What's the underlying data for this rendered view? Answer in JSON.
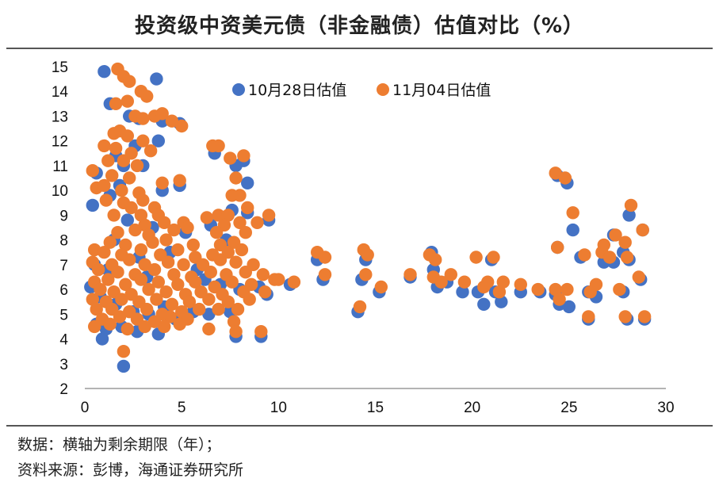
{
  "title": "投资级中资美元债（非金融债）估值对比（%）",
  "notes": {
    "line1": "数据：横轴为剩余期限（年）；",
    "line2": "资料来源：彭博，海通证券研究所"
  },
  "chart_data": {
    "type": "scatter",
    "title": "投资级中资美元债（非金融债）估值对比（%）",
    "xlabel": "",
    "ylabel": "",
    "xlim": [
      0,
      30
    ],
    "ylim": [
      2,
      15
    ],
    "xticks": [
      "0",
      "5",
      "10",
      "15",
      "20",
      "25",
      "30"
    ],
    "yticks": [
      "2",
      "3",
      "4",
      "5",
      "6",
      "7",
      "8",
      "9",
      "10",
      "11",
      "12",
      "13",
      "14",
      "15"
    ],
    "grid": false,
    "legend_position": "top",
    "series": [
      {
        "name": "10月28日估值",
        "color": "#4472C4",
        "points": [
          [
            1.0,
            14.8
          ],
          [
            3.7,
            14.5
          ],
          [
            1.3,
            13.5
          ],
          [
            2.3,
            13.0
          ],
          [
            2.8,
            12.9
          ],
          [
            4.0,
            12.8
          ],
          [
            4.9,
            12.7
          ],
          [
            3.8,
            12.0
          ],
          [
            2.6,
            11.8
          ],
          [
            1.6,
            11.4
          ],
          [
            3.0,
            11.0
          ],
          [
            2.0,
            11.0
          ],
          [
            6.7,
            11.5
          ],
          [
            8.2,
            11.2
          ],
          [
            7.8,
            11.0
          ],
          [
            0.6,
            10.7
          ],
          [
            8.4,
            10.3
          ],
          [
            4.0,
            10.0
          ],
          [
            4.9,
            10.2
          ],
          [
            1.8,
            10.2
          ],
          [
            1.3,
            9.8
          ],
          [
            0.4,
            9.4
          ],
          [
            7.6,
            9.2
          ],
          [
            8.4,
            9.1
          ],
          [
            9.5,
            8.8
          ],
          [
            5.2,
            8.3
          ],
          [
            6.5,
            8.6
          ],
          [
            7.3,
            8.0
          ],
          [
            2.2,
            8.8
          ],
          [
            3.5,
            8.5
          ],
          [
            1.5,
            8.0
          ],
          [
            4.4,
            7.5
          ],
          [
            2.8,
            7.3
          ],
          [
            0.5,
            7.0
          ],
          [
            1.2,
            6.8
          ],
          [
            3.2,
            6.5
          ],
          [
            5.8,
            6.8
          ],
          [
            6.2,
            6.4
          ],
          [
            7.0,
            6.2
          ],
          [
            8.0,
            6.0
          ],
          [
            9.0,
            6.1
          ],
          [
            9.4,
            5.8
          ],
          [
            10.6,
            6.2
          ],
          [
            12.0,
            7.2
          ],
          [
            12.3,
            6.4
          ],
          [
            0.3,
            6.1
          ],
          [
            0.8,
            5.7
          ],
          [
            1.6,
            5.4
          ],
          [
            2.5,
            5.1
          ],
          [
            3.3,
            5.0
          ],
          [
            4.1,
            5.3
          ],
          [
            4.7,
            4.8
          ],
          [
            5.6,
            5.1
          ],
          [
            6.4,
            5.0
          ],
          [
            7.5,
            5.1
          ],
          [
            0.6,
            4.6
          ],
          [
            1.1,
            4.4
          ],
          [
            1.9,
            4.5
          ],
          [
            2.7,
            4.3
          ],
          [
            3.8,
            4.2
          ],
          [
            0.9,
            4.0
          ],
          [
            7.8,
            4.1
          ],
          [
            9.1,
            4.1
          ],
          [
            2.0,
            2.9
          ],
          [
            14.5,
            7.2
          ],
          [
            14.3,
            6.4
          ],
          [
            14.1,
            5.1
          ],
          [
            15.2,
            5.9
          ],
          [
            16.8,
            6.5
          ],
          [
            17.9,
            7.5
          ],
          [
            18.0,
            6.8
          ],
          [
            18.2,
            6.1
          ],
          [
            18.7,
            6.3
          ],
          [
            19.5,
            5.9
          ],
          [
            20.3,
            5.9
          ],
          [
            20.6,
            5.4
          ],
          [
            21.0,
            7.2
          ],
          [
            21.2,
            5.9
          ],
          [
            21.5,
            5.5
          ],
          [
            22.5,
            5.9
          ],
          [
            23.5,
            5.9
          ],
          [
            24.3,
            5.8
          ],
          [
            24.5,
            5.4
          ],
          [
            25.0,
            5.3
          ],
          [
            24.4,
            7.7
          ],
          [
            24.9,
            10.3
          ],
          [
            24.4,
            10.6
          ],
          [
            25.2,
            8.4
          ],
          [
            25.6,
            7.3
          ],
          [
            26.0,
            5.9
          ],
          [
            26.4,
            5.7
          ],
          [
            26.0,
            4.8
          ],
          [
            26.8,
            7.1
          ],
          [
            27.3,
            8.2
          ],
          [
            27.3,
            7.1
          ],
          [
            27.8,
            7.5
          ],
          [
            28.1,
            7.2
          ],
          [
            27.8,
            5.9
          ],
          [
            28.1,
            9.0
          ],
          [
            28.7,
            6.4
          ],
          [
            28.8,
            8.4
          ],
          [
            28.0,
            4.8
          ],
          [
            28.9,
            4.8
          ]
        ]
      },
      {
        "name": "11月04日估值",
        "color": "#ED7D31",
        "points": [
          [
            1.7,
            14.9
          ],
          [
            2.0,
            14.6
          ],
          [
            2.3,
            14.4
          ],
          [
            2.9,
            14.0
          ],
          [
            3.2,
            13.8
          ],
          [
            1.6,
            13.5
          ],
          [
            2.2,
            13.6
          ],
          [
            2.6,
            13.0
          ],
          [
            3.6,
            13.0
          ],
          [
            4.0,
            13.1
          ],
          [
            3.0,
            12.9
          ],
          [
            4.5,
            12.8
          ],
          [
            5.0,
            12.6
          ],
          [
            1.5,
            12.3
          ],
          [
            1.8,
            12.4
          ],
          [
            2.2,
            12.2
          ],
          [
            3.0,
            12.0
          ],
          [
            1.0,
            11.8
          ],
          [
            1.6,
            11.7
          ],
          [
            2.4,
            11.5
          ],
          [
            3.4,
            11.6
          ],
          [
            1.2,
            11.2
          ],
          [
            2.0,
            11.2
          ],
          [
            2.7,
            11.0
          ],
          [
            6.6,
            11.8
          ],
          [
            6.9,
            11.8
          ],
          [
            7.5,
            11.3
          ],
          [
            8.2,
            11.4
          ],
          [
            0.4,
            10.8
          ],
          [
            1.4,
            10.6
          ],
          [
            2.3,
            10.5
          ],
          [
            4.0,
            10.3
          ],
          [
            4.9,
            10.4
          ],
          [
            7.8,
            10.5
          ],
          [
            0.6,
            10.1
          ],
          [
            1.0,
            10.2
          ],
          [
            1.9,
            10.0
          ],
          [
            2.8,
            9.9
          ],
          [
            7.6,
            9.8
          ],
          [
            8.0,
            9.8
          ],
          [
            1.1,
            9.6
          ],
          [
            2.0,
            9.5
          ],
          [
            3.0,
            9.6
          ],
          [
            3.6,
            9.3
          ],
          [
            2.4,
            9.3
          ],
          [
            1.5,
            9.0
          ],
          [
            2.9,
            9.0
          ],
          [
            3.8,
            9.0
          ],
          [
            6.9,
            9.0
          ],
          [
            7.4,
            9.0
          ],
          [
            8.4,
            9.3
          ],
          [
            9.5,
            9.0
          ],
          [
            3.1,
            8.6
          ],
          [
            4.1,
            8.7
          ],
          [
            5.1,
            8.7
          ],
          [
            6.3,
            8.9
          ],
          [
            7.2,
            8.6
          ],
          [
            8.0,
            8.7
          ],
          [
            8.9,
            8.7
          ],
          [
            1.7,
            8.3
          ],
          [
            2.6,
            8.4
          ],
          [
            3.3,
            8.2
          ],
          [
            4.6,
            8.4
          ],
          [
            5.3,
            8.5
          ],
          [
            6.8,
            8.3
          ],
          [
            8.3,
            8.3
          ],
          [
            1.3,
            7.9
          ],
          [
            2.1,
            7.8
          ],
          [
            3.5,
            7.9
          ],
          [
            4.2,
            8.0
          ],
          [
            5.6,
            7.8
          ],
          [
            7.0,
            7.8
          ],
          [
            7.7,
            7.9
          ],
          [
            0.5,
            7.6
          ],
          [
            1.0,
            7.5
          ],
          [
            1.9,
            7.4
          ],
          [
            2.9,
            7.6
          ],
          [
            3.9,
            7.4
          ],
          [
            4.8,
            7.6
          ],
          [
            5.7,
            7.3
          ],
          [
            6.6,
            7.4
          ],
          [
            7.4,
            7.5
          ],
          [
            8.1,
            7.6
          ],
          [
            0.4,
            7.1
          ],
          [
            1.4,
            7.0
          ],
          [
            2.3,
            7.2
          ],
          [
            3.1,
            7.0
          ],
          [
            4.3,
            7.1
          ],
          [
            5.1,
            7.0
          ],
          [
            6.1,
            7.0
          ],
          [
            7.0,
            7.2
          ],
          [
            7.8,
            7.1
          ],
          [
            8.7,
            7.0
          ],
          [
            0.7,
            6.8
          ],
          [
            1.7,
            6.7
          ],
          [
            2.6,
            6.6
          ],
          [
            3.6,
            6.8
          ],
          [
            4.6,
            6.6
          ],
          [
            5.5,
            6.5
          ],
          [
            6.5,
            6.7
          ],
          [
            7.3,
            6.6
          ],
          [
            8.3,
            6.7
          ],
          [
            9.2,
            6.6
          ],
          [
            0.5,
            6.3
          ],
          [
            1.2,
            6.4
          ],
          [
            2.1,
            6.2
          ],
          [
            2.9,
            6.4
          ],
          [
            3.8,
            6.3
          ],
          [
            4.8,
            6.2
          ],
          [
            5.7,
            6.3
          ],
          [
            6.7,
            6.1
          ],
          [
            7.6,
            6.3
          ],
          [
            8.6,
            6.2
          ],
          [
            9.8,
            6.4
          ],
          [
            0.8,
            6.0
          ],
          [
            1.5,
            5.9
          ],
          [
            2.4,
            5.8
          ],
          [
            3.3,
            6.0
          ],
          [
            4.2,
            5.9
          ],
          [
            5.2,
            5.8
          ],
          [
            6.0,
            5.9
          ],
          [
            7.1,
            5.8
          ],
          [
            8.2,
            5.9
          ],
          [
            9.3,
            5.9
          ],
          [
            0.4,
            5.6
          ],
          [
            1.1,
            5.5
          ],
          [
            1.9,
            5.6
          ],
          [
            2.8,
            5.5
          ],
          [
            3.7,
            5.6
          ],
          [
            4.5,
            5.4
          ],
          [
            5.4,
            5.5
          ],
          [
            6.4,
            5.6
          ],
          [
            7.4,
            5.5
          ],
          [
            8.5,
            5.6
          ],
          [
            0.6,
            5.2
          ],
          [
            1.4,
            5.2
          ],
          [
            2.3,
            5.1
          ],
          [
            3.2,
            5.2
          ],
          [
            4.0,
            5.0
          ],
          [
            5.0,
            5.1
          ],
          [
            5.9,
            5.2
          ],
          [
            6.9,
            5.2
          ],
          [
            7.9,
            5.2
          ],
          [
            0.9,
            4.8
          ],
          [
            1.8,
            4.9
          ],
          [
            2.7,
            4.8
          ],
          [
            3.6,
            4.7
          ],
          [
            4.4,
            4.9
          ],
          [
            5.3,
            4.8
          ],
          [
            0.5,
            4.5
          ],
          [
            1.3,
            4.6
          ],
          [
            2.2,
            4.4
          ],
          [
            3.1,
            4.5
          ],
          [
            4.1,
            4.5
          ],
          [
            4.9,
            4.6
          ],
          [
            7.7,
            4.7
          ],
          [
            6.4,
            4.4
          ],
          [
            7.8,
            4.3
          ],
          [
            9.1,
            4.3
          ],
          [
            2.0,
            3.5
          ],
          [
            10.0,
            6.4
          ],
          [
            10.8,
            6.3
          ],
          [
            12.0,
            7.5
          ],
          [
            12.4,
            7.3
          ],
          [
            12.4,
            6.6
          ],
          [
            14.4,
            7.6
          ],
          [
            14.6,
            7.4
          ],
          [
            14.5,
            6.6
          ],
          [
            14.2,
            5.3
          ],
          [
            15.3,
            6.1
          ],
          [
            16.8,
            6.6
          ],
          [
            17.8,
            7.4
          ],
          [
            18.1,
            7.2
          ],
          [
            18.0,
            6.5
          ],
          [
            18.4,
            6.3
          ],
          [
            18.9,
            6.6
          ],
          [
            19.6,
            6.3
          ],
          [
            20.2,
            7.3
          ],
          [
            20.6,
            6.1
          ],
          [
            20.8,
            6.3
          ],
          [
            21.1,
            7.3
          ],
          [
            21.4,
            5.9
          ],
          [
            21.6,
            6.3
          ],
          [
            22.5,
            6.2
          ],
          [
            23.4,
            6.0
          ],
          [
            24.3,
            6.0
          ],
          [
            24.5,
            5.6
          ],
          [
            24.9,
            6.0
          ],
          [
            24.4,
            7.7
          ],
          [
            24.3,
            10.7
          ],
          [
            24.8,
            10.5
          ],
          [
            25.2,
            9.1
          ],
          [
            25.8,
            7.4
          ],
          [
            26.1,
            5.9
          ],
          [
            26.4,
            6.2
          ],
          [
            26.7,
            7.5
          ],
          [
            26.8,
            7.8
          ],
          [
            27.1,
            7.3
          ],
          [
            27.4,
            8.2
          ],
          [
            27.6,
            6.0
          ],
          [
            27.9,
            7.9
          ],
          [
            28.0,
            7.3
          ],
          [
            28.2,
            9.4
          ],
          [
            28.6,
            6.5
          ],
          [
            28.8,
            8.4
          ],
          [
            27.9,
            4.9
          ],
          [
            26.0,
            4.9
          ],
          [
            28.9,
            4.9
          ]
        ]
      }
    ]
  }
}
